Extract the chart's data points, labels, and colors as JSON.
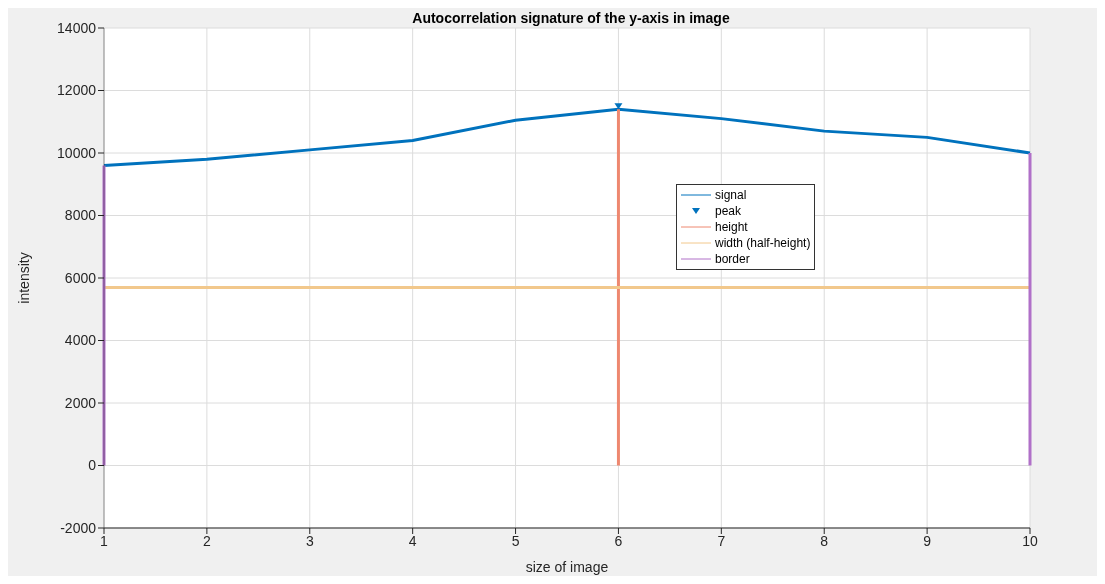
{
  "chart_data": {
    "type": "line",
    "title": "Autocorrelation signature of the y-axis in image",
    "xlabel": "size of image",
    "ylabel": "intensity",
    "xlim": [
      1,
      10
    ],
    "xticks": [
      1,
      2,
      3,
      4,
      5,
      6,
      7,
      8,
      9,
      10
    ],
    "ylim": [
      -2000,
      14000
    ],
    "yticks": [
      -2000,
      0,
      2000,
      4000,
      6000,
      8000,
      10000,
      12000,
      14000
    ],
    "grid": true,
    "legend": "right",
    "x": [
      1,
      2,
      3,
      4,
      5,
      6,
      7,
      8,
      9,
      10
    ],
    "series": [
      {
        "name": "signal",
        "color": "#0072bd",
        "values": [
          9600,
          9800,
          10100,
          10400,
          11050,
          11400,
          11100,
          10700,
          10500,
          10000
        ]
      },
      {
        "name": "peak",
        "type": "scatter",
        "marker": "triangle",
        "color": "#0072bd",
        "x": [
          6
        ],
        "values": [
          11500
        ]
      },
      {
        "name": "height",
        "color": "#ee8870",
        "x": [
          6,
          6
        ],
        "values": [
          0,
          11400
        ]
      },
      {
        "name": "width (half-height)",
        "color": "#f2c88c",
        "x": [
          1,
          10
        ],
        "values": [
          5700,
          5700
        ]
      },
      {
        "name": "border",
        "color": "#b070c8",
        "x": [
          1,
          1
        ],
        "values": [
          0,
          9600
        ]
      },
      {
        "color": "#b070c8",
        "x": [
          10,
          10
        ],
        "values": [
          0,
          10000
        ]
      }
    ]
  }
}
